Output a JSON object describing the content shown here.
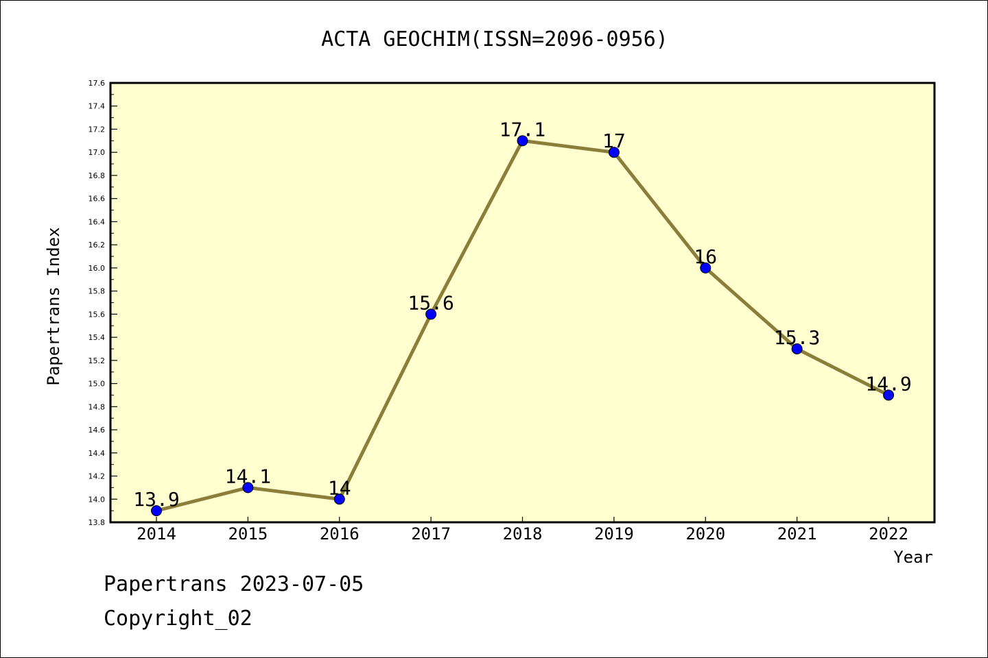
{
  "chart_data": {
    "type": "line",
    "title": "ACTA GEOCHIM(ISSN=2096-0956)",
    "xlabel": "Year",
    "ylabel": "Papertrans Index",
    "categories": [
      "2014",
      "2015",
      "2016",
      "2017",
      "2018",
      "2019",
      "2020",
      "2021",
      "2022"
    ],
    "series": [
      {
        "values": [
          13.9,
          14.1,
          14.0,
          15.6,
          17.1,
          17.0,
          16.0,
          15.3,
          14.9
        ],
        "labels": [
          "13.9",
          "14.1",
          "14",
          "15.6",
          "17.1",
          "17",
          "16",
          "15.3",
          "14.9"
        ]
      }
    ],
    "ylim": [
      13.8,
      17.6
    ],
    "yticks": [
      "13.8",
      "14.0",
      "14.2",
      "14.4",
      "14.6",
      "14.8",
      "15.0",
      "15.2",
      "15.4",
      "15.6",
      "15.8",
      "16.0",
      "16.2",
      "16.4",
      "16.6",
      "16.8",
      "17.0",
      "17.2",
      "17.4",
      "17.6"
    ],
    "grid": false,
    "colors": {
      "plot_background": "#ffffd0",
      "line": "#8b7d3a",
      "marker": "#0000ff"
    }
  },
  "footer": {
    "source_line": "Papertrans 2023-07-05",
    "copyright": "Copyright_02"
  }
}
